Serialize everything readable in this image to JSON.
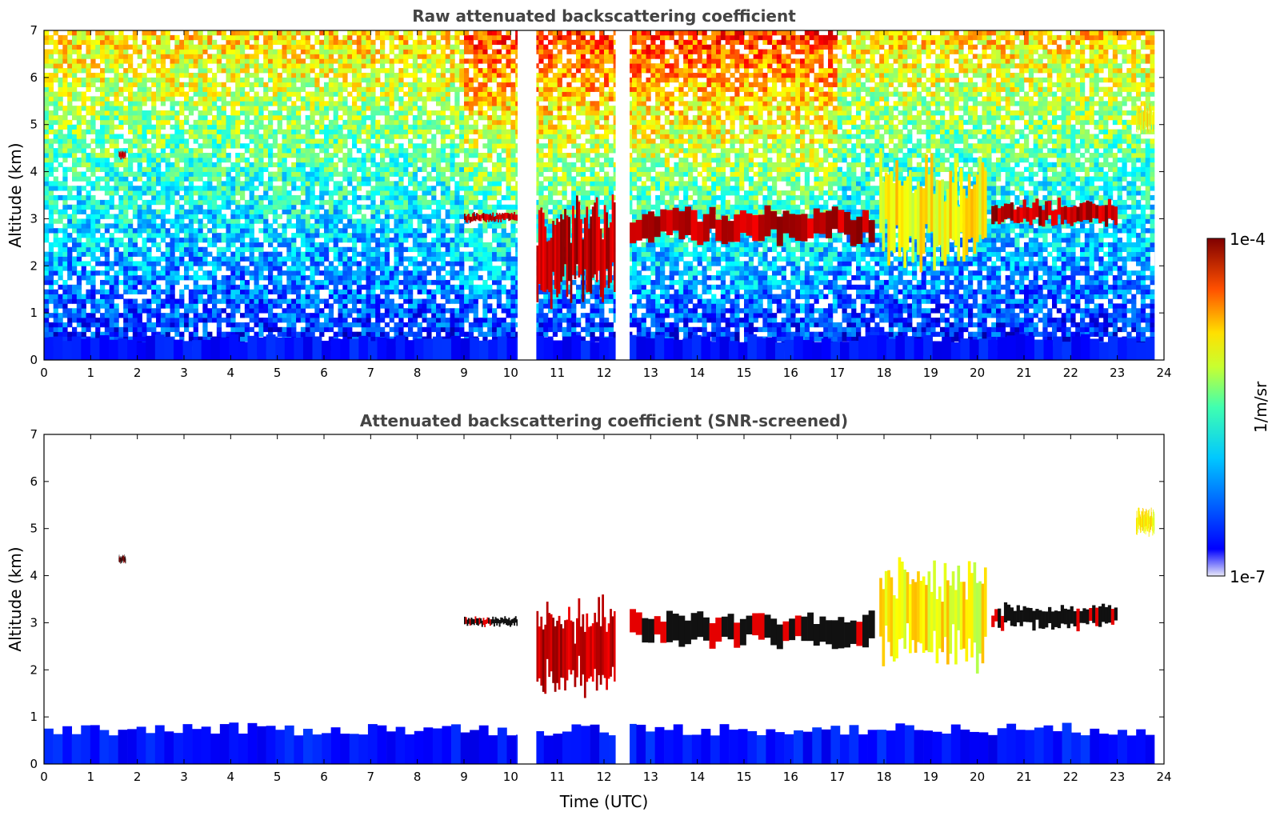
{
  "chart_data": [
    {
      "type": "heatmap",
      "title": "Raw attenuated backscattering coefficient",
      "xlabel": "",
      "ylabel": "Altitude (km)",
      "xlim": [
        0,
        24
      ],
      "ylim": [
        0,
        7
      ],
      "x_ticks": [
        "0",
        "1",
        "2",
        "3",
        "4",
        "5",
        "6",
        "7",
        "8",
        "9",
        "10",
        "11",
        "12",
        "13",
        "14",
        "15",
        "16",
        "17",
        "18",
        "19",
        "20",
        "21",
        "22",
        "23",
        "24"
      ],
      "y_ticks": [
        "0",
        "1",
        "2",
        "3",
        "4",
        "5",
        "6",
        "7"
      ],
      "missing_data_gaps_utc": [
        [
          10.15,
          10.55
        ],
        [
          12.25,
          12.55
        ],
        [
          23.8,
          24.0
        ]
      ],
      "features": [
        {
          "kind": "surface_layer",
          "x": [
            0,
            23.8
          ],
          "altitude_km": [
            0,
            0.5
          ],
          "level": "low"
        },
        {
          "kind": "cloud",
          "x": [
            1.6,
            1.75
          ],
          "altitude_km": [
            4.25,
            4.45
          ],
          "level": "high"
        },
        {
          "kind": "cloud",
          "x": [
            9.0,
            10.15
          ],
          "altitude_km": [
            2.9,
            3.15
          ],
          "level": "high"
        },
        {
          "kind": "cloud",
          "x": [
            10.55,
            12.25
          ],
          "altitude_km": [
            1.0,
            3.6
          ],
          "level": "high"
        },
        {
          "kind": "cloud",
          "x": [
            12.55,
            17.8
          ],
          "altitude_km": [
            2.4,
            3.35
          ],
          "level": "high"
        },
        {
          "kind": "precipitation_plume",
          "x": [
            17.9,
            20.2
          ],
          "altitude_km": [
            1.8,
            4.5
          ],
          "level": "mid"
        },
        {
          "kind": "cloud",
          "x": [
            20.3,
            23.0
          ],
          "altitude_km": [
            2.8,
            3.45
          ],
          "level": "high"
        },
        {
          "kind": "cloud",
          "x": [
            23.4,
            23.8
          ],
          "altitude_km": [
            4.8,
            5.5
          ],
          "level": "mid"
        }
      ]
    },
    {
      "type": "heatmap",
      "title": "Attenuated backscattering coefficient (SNR-screened)",
      "xlabel": "Time (UTC)",
      "ylabel": "Altitude (km)",
      "xlim": [
        0,
        24
      ],
      "ylim": [
        0,
        7
      ],
      "x_ticks": [
        "0",
        "1",
        "2",
        "3",
        "4",
        "5",
        "6",
        "7",
        "8",
        "9",
        "10",
        "11",
        "12",
        "13",
        "14",
        "15",
        "16",
        "17",
        "18",
        "19",
        "20",
        "21",
        "22",
        "23",
        "24"
      ],
      "y_ticks": [
        "0",
        "1",
        "2",
        "3",
        "4",
        "5",
        "6",
        "7"
      ],
      "missing_data_gaps_utc": [
        [
          10.15,
          10.55
        ],
        [
          12.25,
          12.55
        ],
        [
          23.8,
          24.0
        ]
      ],
      "features": [
        {
          "kind": "surface_layer",
          "x": [
            0,
            23.8
          ],
          "altitude_km": [
            0,
            0.8
          ],
          "level": "low"
        },
        {
          "kind": "cloud",
          "x": [
            1.6,
            1.75
          ],
          "altitude_km": [
            4.25,
            4.45
          ],
          "level": "saturated"
        },
        {
          "kind": "cloud",
          "x": [
            9.0,
            10.15
          ],
          "altitude_km": [
            2.9,
            3.15
          ],
          "level": "saturated"
        },
        {
          "kind": "cloud",
          "x": [
            10.55,
            12.25
          ],
          "altitude_km": [
            1.2,
            3.6
          ],
          "level": "high"
        },
        {
          "kind": "cloud",
          "x": [
            12.55,
            17.8
          ],
          "altitude_km": [
            2.4,
            3.35
          ],
          "level": "saturated"
        },
        {
          "kind": "precipitation_plume",
          "x": [
            17.9,
            20.2
          ],
          "altitude_km": [
            1.8,
            4.5
          ],
          "level": "mid"
        },
        {
          "kind": "cloud",
          "x": [
            20.3,
            23.0
          ],
          "altitude_km": [
            2.8,
            3.45
          ],
          "level": "saturated"
        },
        {
          "kind": "cloud",
          "x": [
            23.4,
            23.8
          ],
          "altitude_km": [
            4.8,
            5.5
          ],
          "level": "mid"
        }
      ]
    }
  ],
  "colorbar": {
    "label": "1/m/sr",
    "max_label": "1e-4",
    "min_label": "1e-7",
    "colormap": "jet",
    "scale": "log",
    "range": [
      1e-07,
      0.0001
    ]
  }
}
